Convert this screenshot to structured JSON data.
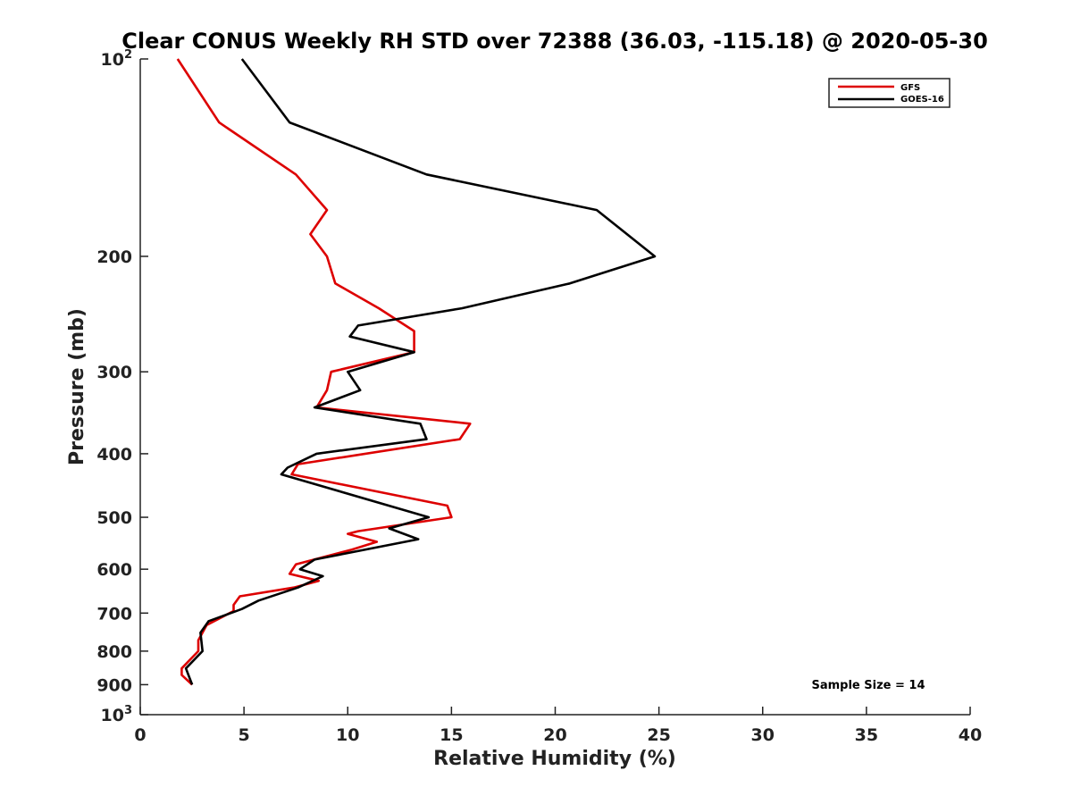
{
  "chart_data": {
    "type": "line",
    "title": "Clear CONUS Weekly RH STD over 72388 (36.03, -115.18) @ 2020-05-30",
    "xlabel": "Relative Humidity (%)",
    "ylabel": "Pressure (mb)",
    "xlim": [
      0,
      40
    ],
    "ylim": [
      100,
      1000
    ],
    "yscale": "log",
    "y_reversed": true,
    "x_ticks": [
      0,
      5,
      10,
      15,
      20,
      25,
      30,
      35,
      40
    ],
    "x_tick_labels": [
      "0",
      "5",
      "10",
      "15",
      "20",
      "25",
      "30",
      "35",
      "40"
    ],
    "y_ticks": [
      100,
      200,
      300,
      400,
      500,
      600,
      700,
      800,
      900,
      1000
    ],
    "y_tick_labels": [
      {
        "base": "10",
        "exp": "2"
      },
      {
        "base": "200",
        "exp": ""
      },
      {
        "base": "300",
        "exp": ""
      },
      {
        "base": "400",
        "exp": ""
      },
      {
        "base": "500",
        "exp": ""
      },
      {
        "base": "600",
        "exp": ""
      },
      {
        "base": "700",
        "exp": ""
      },
      {
        "base": "800",
        "exp": ""
      },
      {
        "base": "900",
        "exp": ""
      },
      {
        "base": "10",
        "exp": "3"
      }
    ],
    "grid": false,
    "legend_position": "top-right",
    "annotation": "Sample Size = 14",
    "series": [
      {
        "name": "GFS",
        "color": "#dd0000",
        "points": [
          [
            1.8,
            100
          ],
          [
            3.8,
            125
          ],
          [
            7.5,
            150
          ],
          [
            9.0,
            170
          ],
          [
            8.2,
            185
          ],
          [
            9.0,
            200
          ],
          [
            9.4,
            220
          ],
          [
            11.5,
            240
          ],
          [
            13.2,
            260
          ],
          [
            13.2,
            280
          ],
          [
            9.2,
            300
          ],
          [
            9.0,
            320
          ],
          [
            8.5,
            340
          ],
          [
            15.9,
            360
          ],
          [
            15.4,
            380
          ],
          [
            7.6,
            415
          ],
          [
            7.3,
            430
          ],
          [
            14.8,
            480
          ],
          [
            15.0,
            500
          ],
          [
            10.5,
            525
          ],
          [
            10.0,
            530
          ],
          [
            11.4,
            545
          ],
          [
            10.2,
            560
          ],
          [
            7.5,
            590
          ],
          [
            7.2,
            610
          ],
          [
            8.6,
            625
          ],
          [
            7.4,
            640
          ],
          [
            4.8,
            660
          ],
          [
            4.5,
            680
          ],
          [
            4.5,
            695
          ],
          [
            3.2,
            730
          ],
          [
            2.8,
            770
          ],
          [
            2.8,
            800
          ],
          [
            2.0,
            850
          ],
          [
            2.0,
            870
          ],
          [
            2.5,
            900
          ]
        ]
      },
      {
        "name": "GOES-16",
        "color": "#000000",
        "points": [
          [
            4.9,
            100
          ],
          [
            7.2,
            125
          ],
          [
            13.8,
            150
          ],
          [
            22.0,
            170
          ],
          [
            24.8,
            200
          ],
          [
            20.7,
            220
          ],
          [
            15.5,
            240
          ],
          [
            10.5,
            255
          ],
          [
            10.1,
            265
          ],
          [
            13.2,
            280
          ],
          [
            10.0,
            300
          ],
          [
            10.6,
            320
          ],
          [
            8.4,
            340
          ],
          [
            13.5,
            360
          ],
          [
            13.8,
            380
          ],
          [
            8.5,
            400
          ],
          [
            7.1,
            420
          ],
          [
            6.8,
            430
          ],
          [
            13.9,
            500
          ],
          [
            12.0,
            520
          ],
          [
            13.4,
            540
          ],
          [
            8.4,
            580
          ],
          [
            7.7,
            600
          ],
          [
            8.8,
            615
          ],
          [
            7.6,
            640
          ],
          [
            5.7,
            670
          ],
          [
            4.9,
            690
          ],
          [
            3.3,
            720
          ],
          [
            2.9,
            750
          ],
          [
            3.0,
            800
          ],
          [
            2.2,
            850
          ],
          [
            2.5,
            900
          ]
        ]
      }
    ]
  }
}
